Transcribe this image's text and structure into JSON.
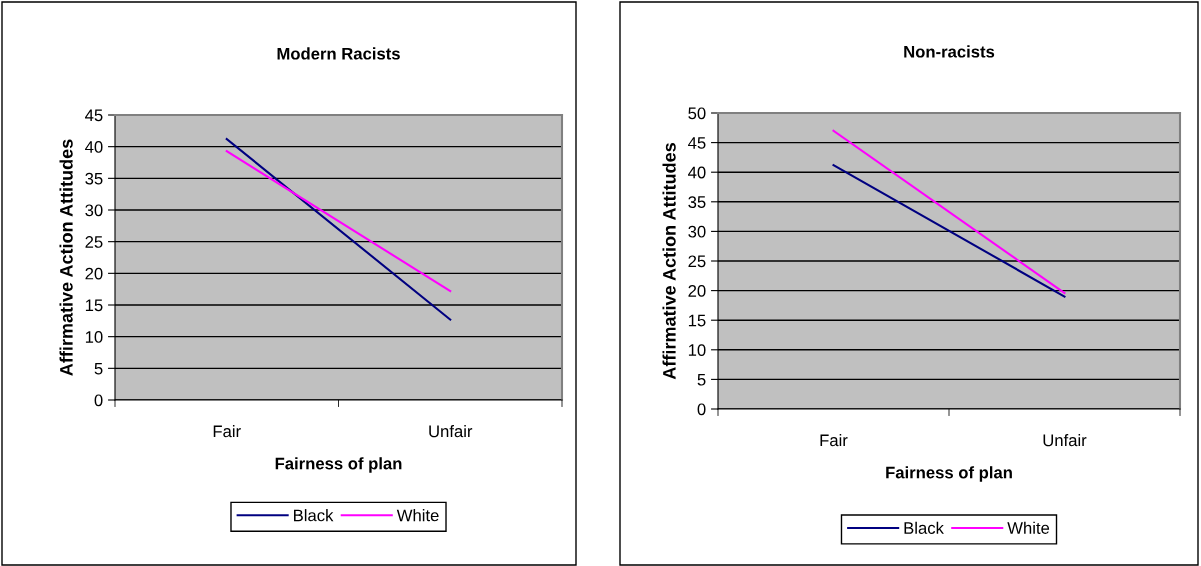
{
  "chart_data": [
    {
      "type": "line",
      "title": "Modern Racists",
      "xlabel": "Fairness of plan",
      "ylabel": "Affirmative Action Attitudes",
      "categories": [
        "Fair",
        "Unfair"
      ],
      "series": [
        {
          "name": "Black",
          "color": "#000080",
          "values": [
            41.2,
            12.7
          ]
        },
        {
          "name": "White",
          "color": "#ff00ff",
          "values": [
            39.3,
            17.2
          ]
        }
      ],
      "ylim": [
        0,
        45
      ],
      "yticks": [
        0,
        5,
        10,
        15,
        20,
        25,
        30,
        35,
        40,
        45
      ],
      "grid": "y",
      "legend": "bottom",
      "marker": "none",
      "line_style": "solid"
    },
    {
      "type": "line",
      "title": "Non-racists",
      "xlabel": "Fairness of plan",
      "ylabel": "Affirmative Action Attitudes",
      "categories": [
        "Fair",
        "Unfair"
      ],
      "series": [
        {
          "name": "Black",
          "color": "#000080",
          "values": [
            41.2,
            19.0
          ]
        },
        {
          "name": "White",
          "color": "#ff00ff",
          "values": [
            47.0,
            19.6
          ]
        }
      ],
      "ylim": [
        0,
        50
      ],
      "yticks": [
        0,
        5,
        10,
        15,
        20,
        25,
        30,
        35,
        40,
        45,
        50
      ],
      "grid": "y",
      "legend": "bottom",
      "marker": "none",
      "line_style": "solid"
    }
  ]
}
